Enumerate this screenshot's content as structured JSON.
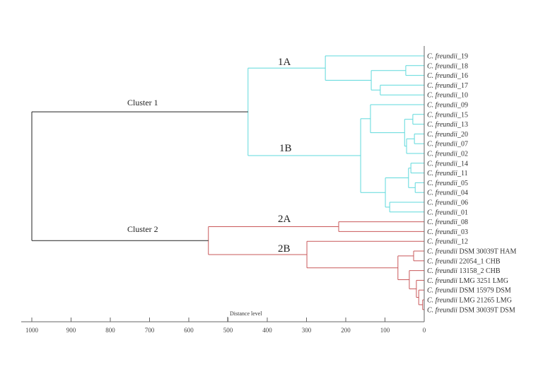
{
  "colors": {
    "cluster1": "#5fd9dc",
    "cluster2": "#c9585a",
    "root": "#222222",
    "axis": "#666666"
  },
  "labels": {
    "cluster1": "Cluster 1",
    "cluster2": "Cluster 2",
    "sub_1A": "1A",
    "sub_1B": "1B",
    "sub_2A": "2A",
    "sub_2B": "2B",
    "axis_title": "Distance level"
  },
  "axis": {
    "ticks": [
      1000,
      900,
      800,
      700,
      600,
      500,
      400,
      300,
      200,
      100,
      0
    ],
    "range": [
      1000,
      0
    ]
  },
  "genus": "C. freundii",
  "tree": {
    "h": 1000,
    "children": [
      {
        "h": 449,
        "color": "cluster1",
        "children": [
          {
            "h": 252,
            "children": [
              {
                "leaf": "_19"
              },
              {
                "h": 135,
                "children": [
                  {
                    "h": 47,
                    "children": [
                      {
                        "leaf": "_18"
                      },
                      {
                        "leaf": "_16"
                      }
                    ]
                  },
                  {
                    "h": 112,
                    "children": [
                      {
                        "leaf": "_17"
                      },
                      {
                        "leaf": "_10"
                      }
                    ]
                  }
                ]
              }
            ]
          },
          {
            "h": 162,
            "children": [
              {
                "h": 137,
                "children": [
                  {
                    "leaf": "_09"
                  },
                  {
                    "h": 50,
                    "children": [
                      {
                        "h": 29,
                        "children": [
                          {
                            "leaf": "_15"
                          },
                          {
                            "leaf": "_13"
                          }
                        ]
                      },
                      {
                        "h": 45,
                        "children": [
                          {
                            "h": 25,
                            "children": [
                              {
                                "leaf": "_20"
                              },
                              {
                                "leaf": "_07"
                              }
                            ]
                          },
                          {
                            "leaf": "_02"
                          }
                        ]
                      }
                    ]
                  }
                ]
              },
              {
                "h": 99,
                "children": [
                  {
                    "h": 40,
                    "children": [
                      {
                        "h": 34,
                        "children": [
                          {
                            "leaf": "_14"
                          },
                          {
                            "leaf": "_11"
                          }
                        ]
                      },
                      {
                        "h": 23,
                        "children": [
                          {
                            "leaf": "_05"
                          },
                          {
                            "leaf": "_04"
                          }
                        ]
                      }
                    ]
                  },
                  {
                    "h": 88,
                    "children": [
                      {
                        "leaf": "_06"
                      },
                      {
                        "leaf": "_01"
                      }
                    ]
                  }
                ]
              }
            ]
          }
        ]
      },
      {
        "h": 550,
        "color": "cluster2",
        "children": [
          {
            "h": 218,
            "children": [
              {
                "leaf": "_08"
              },
              {
                "leaf": "_03"
              }
            ]
          },
          {
            "h": 299,
            "children": [
              {
                "leaf": "_12"
              },
              {
                "h": 67,
                "children": [
                  {
                    "h": 27,
                    "children": [
                      {
                        "leaf": " DSM 30039T HAM"
                      },
                      {
                        "leaf": " 22054_1 CHB"
                      }
                    ]
                  },
                  {
                    "h": 38,
                    "children": [
                      {
                        "leaf": " 13158_2 CHB"
                      },
                      {
                        "h": 20,
                        "children": [
                          {
                            "leaf": " LMG 3251 LMG"
                          },
                          {
                            "h": 14,
                            "children": [
                              {
                                "leaf": " DSM 15979 DSM"
                              },
                              {
                                "h": 4,
                                "children": [
                                  {
                                    "leaf": " LMG 21265 LMG"
                                  },
                                  {
                                    "leaf": " DSM 30039T DSM"
                                  }
                                ]
                              }
                            ]
                          }
                        ]
                      }
                    ]
                  }
                ]
              }
            ]
          }
        ]
      }
    ]
  }
}
